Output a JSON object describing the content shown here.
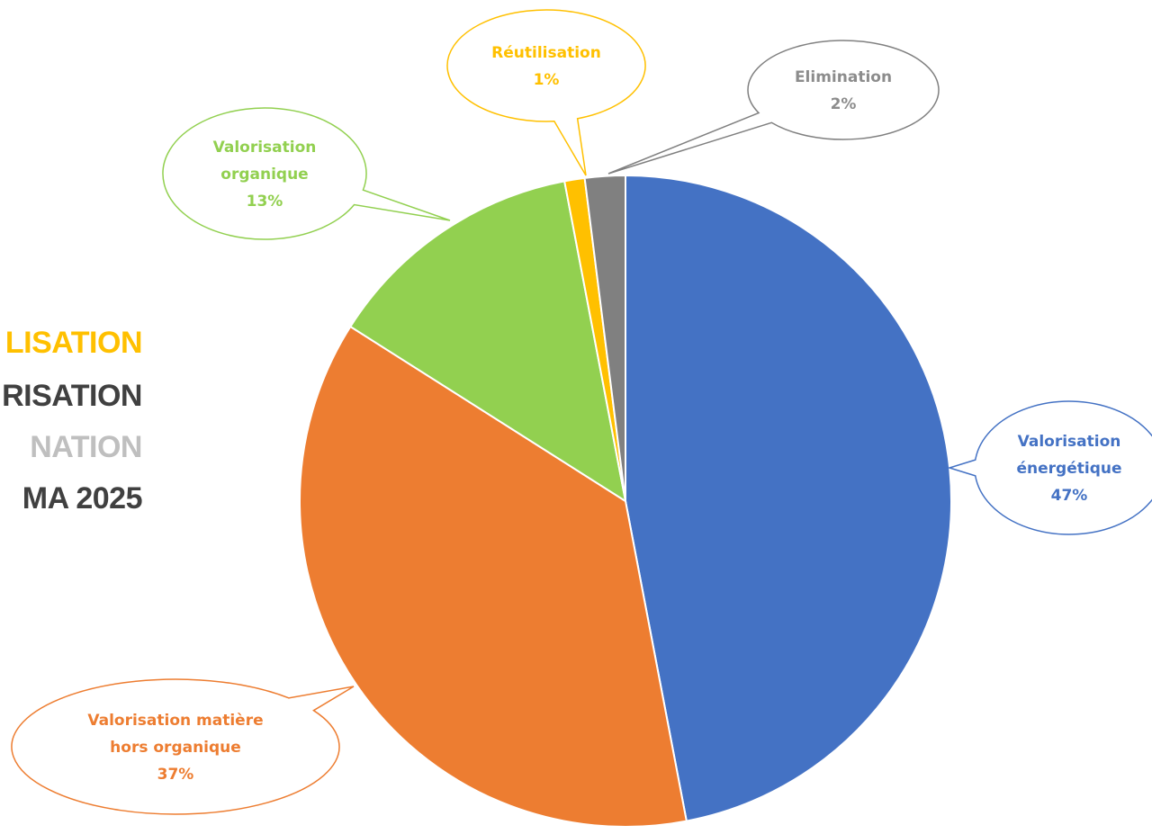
{
  "side_titles": [
    {
      "text": "LISATION",
      "color": "#FFC000"
    },
    {
      "text": "RISATION",
      "color": "#404040"
    },
    {
      "text": "NATION",
      "color": "#BFBFBF"
    },
    {
      "text": "MA 2025",
      "color": "#404040"
    }
  ],
  "chart_data": {
    "type": "pie",
    "title": "",
    "slices": [
      {
        "name": "Valorisation énergétique",
        "value": 47,
        "color": "#4472C4",
        "label_lines": [
          "Valorisation",
          "énergétique",
          "47%"
        ]
      },
      {
        "name": "Valorisation matière hors organique",
        "value": 37,
        "color": "#ED7D31",
        "label_lines": [
          "Valorisation matière",
          "hors organique",
          "37%"
        ]
      },
      {
        "name": "Valorisation organique",
        "value": 13,
        "color": "#92D050",
        "label_lines": [
          "Valorisation",
          "organique",
          "13%"
        ]
      },
      {
        "name": "Réutilisation",
        "value": 1,
        "color": "#FFC000",
        "label_lines": [
          "Réutilisation",
          "1%"
        ]
      },
      {
        "name": "Elimination",
        "value": 2,
        "color": "#808080",
        "label_lines": [
          "Elimination",
          "2%"
        ]
      }
    ],
    "legend": false,
    "data_labels": "callout"
  }
}
